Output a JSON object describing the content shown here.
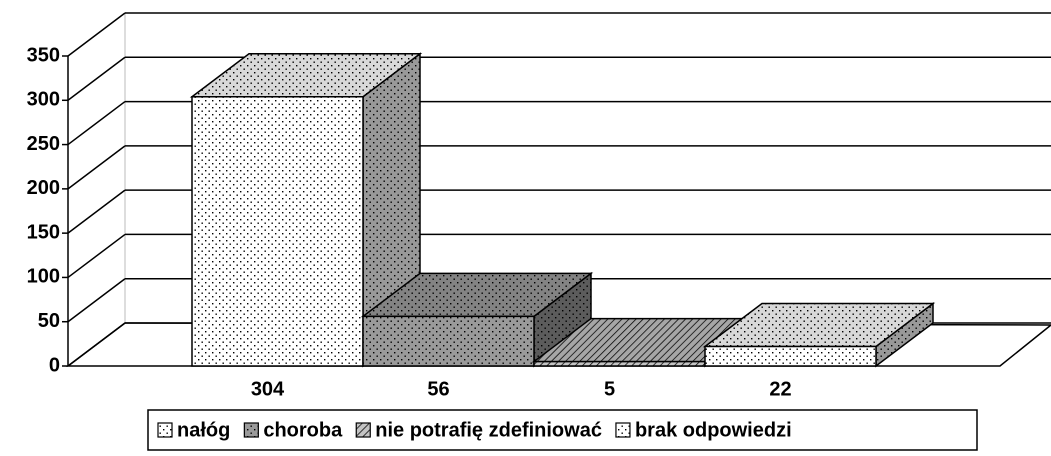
{
  "chart_data": {
    "type": "bar",
    "categories": [
      "nałóg",
      "choroba",
      "nie potrafię zdefiniować",
      "brak odpowiedzi"
    ],
    "values": [
      304,
      56,
      5,
      22
    ],
    "colors": [
      "#ffffff",
      "#9a9a9a",
      "#c4c4c4",
      "#ffffff"
    ],
    "ylim": [
      0,
      350
    ],
    "yticks": [
      0,
      50,
      100,
      150,
      200,
      250,
      300,
      350
    ],
    "grid": true
  }
}
